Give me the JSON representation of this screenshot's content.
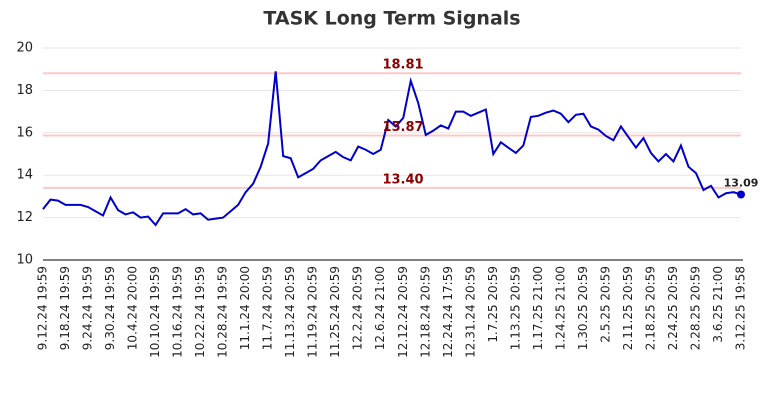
{
  "chart_data": {
    "type": "line",
    "title": "TASK Long Term Signals",
    "categories": [
      "9.12.24 19:59",
      null,
      null,
      "9.18.24 19:59",
      null,
      null,
      "9.24.24 19:59",
      null,
      null,
      "9.30.24 19:59",
      null,
      null,
      "10.4.24 20:00",
      null,
      null,
      "10.10.24 19:59",
      null,
      null,
      "10.16.24 19:59",
      null,
      null,
      "10.22.24 19:59",
      null,
      null,
      "10.28.24 19:59",
      null,
      null,
      "11.1.24 20:00",
      null,
      null,
      "11.7.24 20:59",
      null,
      null,
      "11.13.24 20:59",
      null,
      null,
      "11.19.24 20:59",
      null,
      null,
      "11.25.24 20:59",
      null,
      null,
      "12.2.24 20:59",
      null,
      null,
      "12.6.24 21:00",
      null,
      null,
      "12.12.24 20:59",
      null,
      null,
      "12.18.24 20:59",
      null,
      null,
      "12.24.24 17:59",
      null,
      null,
      "12.31.24 20:59",
      null,
      null,
      "1.7.25 20:59",
      null,
      null,
      "1.13.25 20:59",
      null,
      null,
      "1.17.25 21:00",
      null,
      null,
      "1.24.25 21:00",
      null,
      null,
      "1.30.25 20:59",
      null,
      null,
      "2.5.25 20:59",
      null,
      null,
      "2.11.25 20:59",
      null,
      null,
      "2.18.25 20:59",
      null,
      null,
      "2.24.25 20:59",
      null,
      null,
      "2.28.25 20:59",
      null,
      null,
      "3.6.25 21:00",
      null,
      null,
      "3.12.25 19:58"
    ],
    "series": [
      {
        "color": "#0000cc",
        "values": [
          12.4,
          12.85,
          12.8,
          12.6,
          12.6,
          12.6,
          12.5,
          12.3,
          12.1,
          12.95,
          12.35,
          12.15,
          12.25,
          12.0,
          12.05,
          11.65,
          12.2,
          12.2,
          12.2,
          12.4,
          12.15,
          12.2,
          11.9,
          11.95,
          12.0,
          12.3,
          12.6,
          13.2,
          13.6,
          14.4,
          15.5,
          18.9,
          14.9,
          14.8,
          13.9,
          14.1,
          14.3,
          14.7,
          14.9,
          15.1,
          14.85,
          14.7,
          15.35,
          15.2,
          15.0,
          15.2,
          16.6,
          16.3,
          16.7,
          18.45,
          17.4,
          15.9,
          16.1,
          16.35,
          16.2,
          17.0,
          17.0,
          16.8,
          16.95,
          17.1,
          15.0,
          15.55,
          15.3,
          15.05,
          15.4,
          16.75,
          16.8,
          16.95,
          17.05,
          16.9,
          16.5,
          16.85,
          16.9,
          16.3,
          16.15,
          15.85,
          15.65,
          16.3,
          15.8,
          15.3,
          15.75,
          15.05,
          14.65,
          15.0,
          14.65,
          15.4,
          14.4,
          14.1,
          13.3,
          13.5,
          12.95,
          13.15,
          13.2,
          13.09
        ]
      }
    ],
    "hlines": [
      {
        "value": 18.81,
        "label": "18.81"
      },
      {
        "value": 15.87,
        "label": "15.87"
      },
      {
        "value": 13.4,
        "label": "13.40"
      }
    ],
    "hline_color": "#ffc8c8",
    "hline_label_color": "#8b0000",
    "ylim": [
      10,
      20
    ],
    "yticks": [
      10,
      12,
      14,
      16,
      18,
      20
    ],
    "grid": true
  }
}
